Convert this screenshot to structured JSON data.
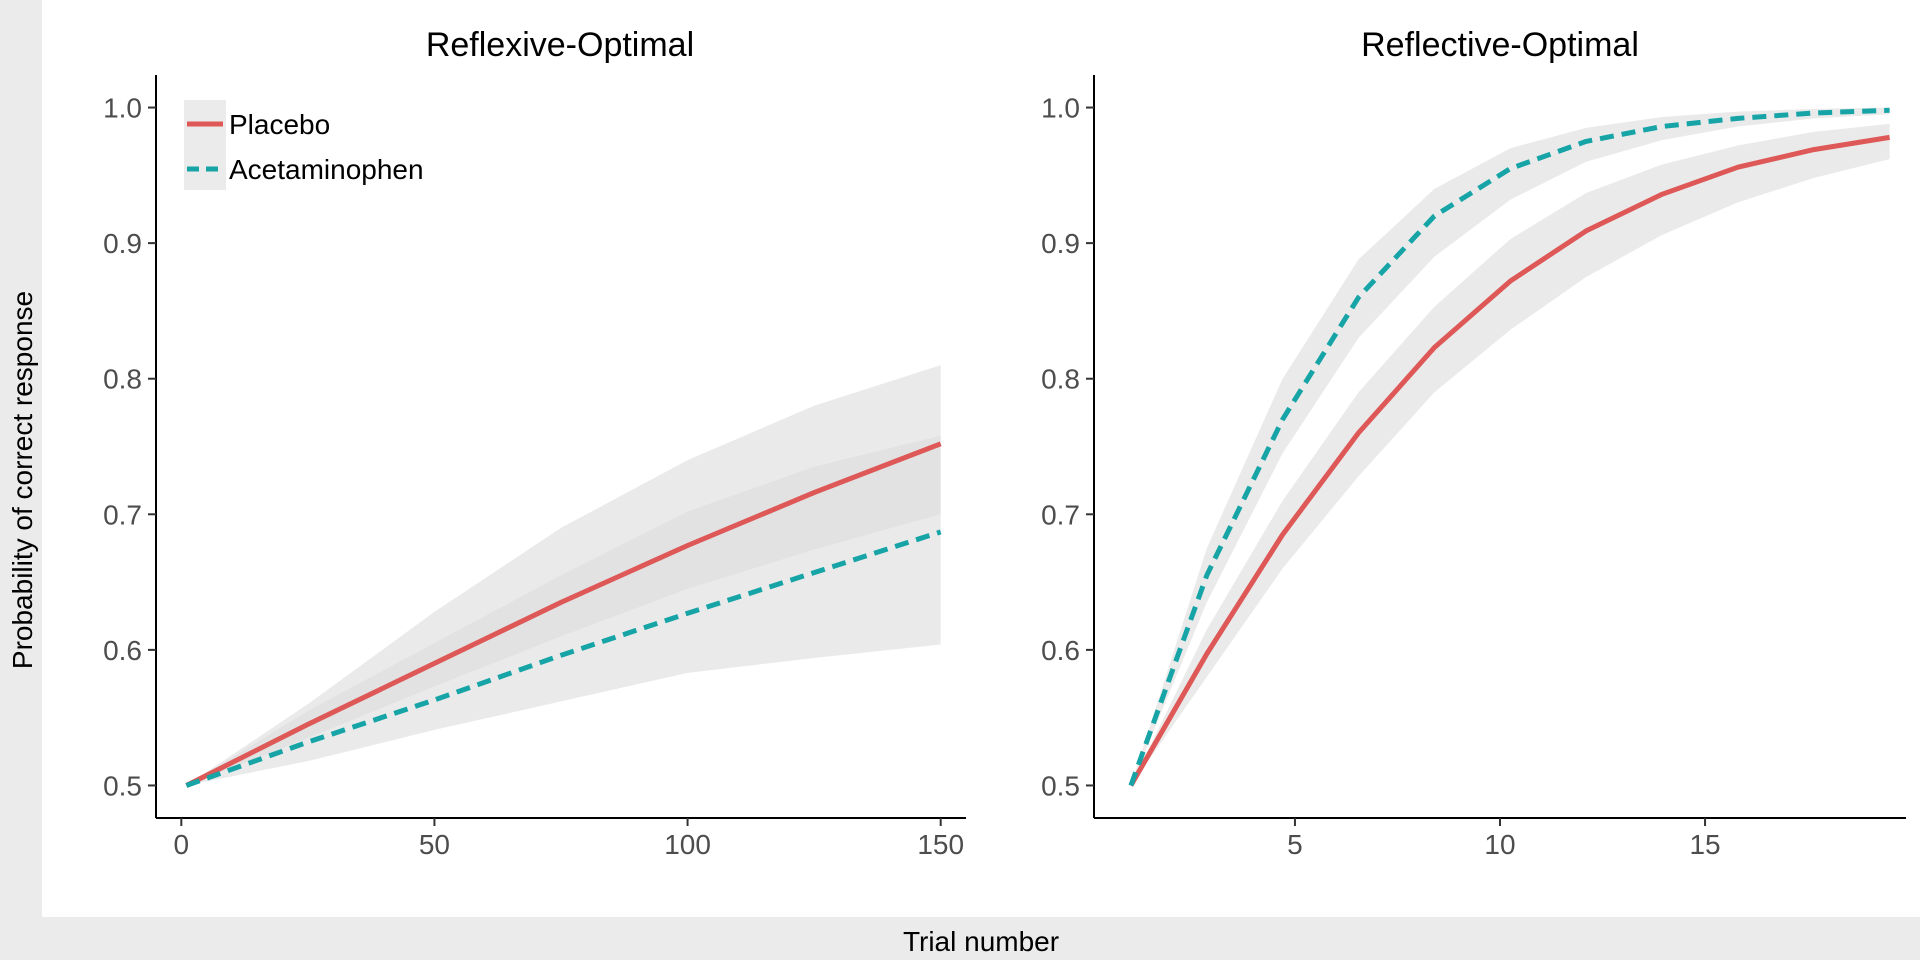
{
  "figure": {
    "ylabel": "Probability of correct response",
    "xlabel": "Trial number"
  },
  "legend": {
    "placement": "top-left",
    "entries": [
      {
        "label": "Placebo",
        "color": "#dd5856",
        "dash": "solid"
      },
      {
        "label": "Acetaminophen",
        "color": "#16a4a6",
        "dash": "dashed"
      }
    ]
  },
  "colors": {
    "placebo": "#dd5856",
    "acetaminophen": "#16a4a6",
    "ribbon": "#dcdcdc",
    "axis": "#000000",
    "tick_text": "#4d4d4d",
    "strip_background": "#ebebeb"
  },
  "chart_data": [
    {
      "type": "line",
      "title": "Reflexive-Optimal",
      "xlabel": "Trial number",
      "ylabel": "Probability of correct response",
      "xlim": [
        -5,
        155
      ],
      "ylim": [
        0.476,
        1.024
      ],
      "xticks": [
        0,
        50,
        100,
        150
      ],
      "yticks": [
        0.5,
        0.6,
        0.7,
        0.8,
        0.9,
        1.0
      ],
      "xtick_labels": [
        "0",
        "50",
        "100",
        "150"
      ],
      "ytick_labels": [
        "0.5",
        "0.6",
        "0.7",
        "0.8",
        "0.9",
        "1.0"
      ],
      "grid": false,
      "x": [
        1,
        25,
        50,
        75,
        100,
        125,
        150
      ],
      "series": [
        {
          "name": "Placebo",
          "values": [
            0.5,
            0.545,
            0.59,
            0.635,
            0.677,
            0.716,
            0.752
          ],
          "lower": [
            0.5,
            0.535,
            0.573,
            0.61,
            0.645,
            0.674,
            0.7
          ],
          "upper": [
            0.5,
            0.555,
            0.605,
            0.655,
            0.702,
            0.735,
            0.758
          ]
        },
        {
          "name": "Acetaminophen",
          "values": [
            0.5,
            0.532,
            0.563,
            0.596,
            0.627,
            0.657,
            0.687
          ],
          "lower": [
            0.5,
            0.518,
            0.541,
            0.562,
            0.583,
            0.594,
            0.604
          ],
          "upper": [
            0.5,
            0.56,
            0.628,
            0.69,
            0.74,
            0.78,
            0.81
          ]
        }
      ]
    },
    {
      "type": "line",
      "title": "Reflective-Optimal",
      "xlabel": "Trial number",
      "ylabel": "Probability of correct response",
      "xlim": [
        0.1,
        19.9
      ],
      "ylim": [
        0.476,
        1.024
      ],
      "xticks": [
        5,
        10,
        15
      ],
      "yticks": [
        0.5,
        0.6,
        0.7,
        0.8,
        0.9,
        1.0
      ],
      "xtick_labels": [
        "5",
        "10",
        "15"
      ],
      "ytick_labels": [
        "0.5",
        "0.6",
        "0.7",
        "0.8",
        "0.9",
        "1.0"
      ],
      "grid": false,
      "x": [
        1,
        2.85,
        4.7,
        6.55,
        8.4,
        10.25,
        12.1,
        13.95,
        15.8,
        17.65,
        19.5
      ],
      "series": [
        {
          "name": "Placebo",
          "values": [
            0.5,
            0.597,
            0.685,
            0.76,
            0.823,
            0.872,
            0.909,
            0.936,
            0.956,
            0.969,
            0.978
          ],
          "lower": [
            0.5,
            0.58,
            0.66,
            0.728,
            0.79,
            0.836,
            0.875,
            0.906,
            0.93,
            0.948,
            0.962
          ],
          "upper": [
            0.5,
            0.615,
            0.71,
            0.79,
            0.853,
            0.903,
            0.937,
            0.958,
            0.972,
            0.982,
            0.988
          ]
        },
        {
          "name": "Acetaminophen",
          "values": [
            0.5,
            0.655,
            0.77,
            0.86,
            0.92,
            0.955,
            0.975,
            0.986,
            0.992,
            0.996,
            0.998
          ],
          "lower": [
            0.5,
            0.635,
            0.745,
            0.83,
            0.89,
            0.932,
            0.96,
            0.976,
            0.986,
            0.992,
            0.995
          ],
          "upper": [
            0.5,
            0.675,
            0.8,
            0.888,
            0.94,
            0.97,
            0.985,
            0.993,
            0.997,
            0.999,
            1.0
          ]
        }
      ]
    }
  ]
}
